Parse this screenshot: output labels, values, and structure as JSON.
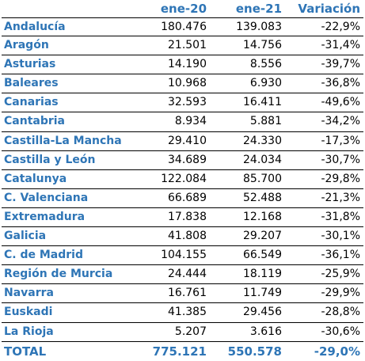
{
  "header": {
    "col1": "ene-20",
    "col2": "ene-21",
    "col3": "Variación"
  },
  "rows": [
    {
      "region": "Andalucía",
      "ene20": "180.476",
      "ene21": "139.083",
      "var": "-22,9%"
    },
    {
      "region": "Aragón",
      "ene20": "21.501",
      "ene21": "14.756",
      "var": "-31,4%"
    },
    {
      "region": "Asturias",
      "ene20": "14.190",
      "ene21": "8.556",
      "var": "-39,7%"
    },
    {
      "region": "Baleares",
      "ene20": "10.968",
      "ene21": "6.930",
      "var": "-36,8%"
    },
    {
      "region": "Canarias",
      "ene20": "32.593",
      "ene21": "16.411",
      "var": "-49,6%"
    },
    {
      "region": "Cantabria",
      "ene20": "8.934",
      "ene21": "5.881",
      "var": "-34,2%"
    },
    {
      "region": "Castilla-La Mancha",
      "ene20": "29.410",
      "ene21": "24.330",
      "var": "-17,3%"
    },
    {
      "region": "Castilla y León",
      "ene20": "34.689",
      "ene21": "24.034",
      "var": "-30,7%"
    },
    {
      "region": "Catalunya",
      "ene20": "122.084",
      "ene21": "85.700",
      "var": "-29,8%"
    },
    {
      "region": "C. Valenciana",
      "ene20": "66.689",
      "ene21": "52.488",
      "var": "-21,3%"
    },
    {
      "region": "Extremadura",
      "ene20": "17.838",
      "ene21": "12.168",
      "var": "-31,8%"
    },
    {
      "region": "Galicia",
      "ene20": "41.808",
      "ene21": "29.207",
      "var": "-30,1%"
    },
    {
      "region": "C. de Madrid",
      "ene20": "104.155",
      "ene21": "66.549",
      "var": "-36,1%"
    },
    {
      "region": "Región de Murcia",
      "ene20": "24.444",
      "ene21": "18.119",
      "var": "-25,9%"
    },
    {
      "region": "Navarra",
      "ene20": "16.761",
      "ene21": "11.749",
      "var": "-29,9%"
    },
    {
      "region": "Euskadi",
      "ene20": "41.385",
      "ene21": "29.456",
      "var": "-28,8%"
    },
    {
      "region": "La Rioja",
      "ene20": "5.207",
      "ene21": "3.616",
      "var": "-30,6%"
    }
  ],
  "total": {
    "label": "TOTAL",
    "ene20": "775.121",
    "ene21": "550.578",
    "var": "-29,0%"
  },
  "colors": {
    "accent": "#2e75b6",
    "text": "#000000",
    "rule": "#000000"
  }
}
